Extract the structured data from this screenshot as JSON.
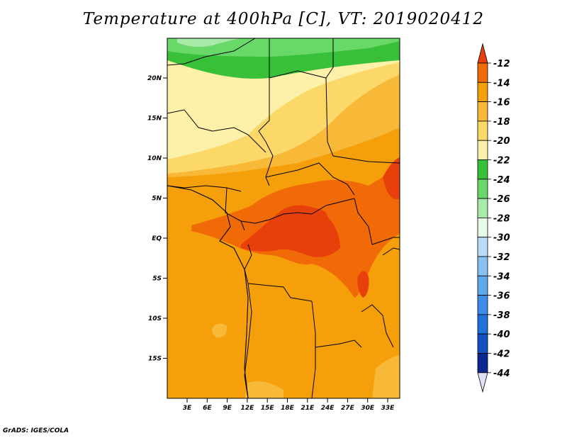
{
  "title": "Temperature at 400hPa [C], VT: 2019020412",
  "footer": "GrADS: IGES/COLA",
  "map": {
    "lat_ticks": [
      "20N",
      "15N",
      "10N",
      "5N",
      "EQ",
      "5S",
      "10S",
      "15S"
    ],
    "lon_ticks": [
      "3E",
      "6E",
      "9E",
      "12E",
      "15E",
      "18E",
      "21E",
      "24E",
      "27E",
      "30E",
      "33E"
    ]
  },
  "colorbar": {
    "labels": [
      "-12",
      "-14",
      "-16",
      "-18",
      "-20",
      "-22",
      "-24",
      "-26",
      "-28",
      "-30",
      "-32",
      "-34",
      "-36",
      "-38",
      "-40",
      "-42",
      "-44"
    ],
    "colors": [
      "#e8400a",
      "#f06a08",
      "#f5a00a",
      "#f8b838",
      "#fbd868",
      "#fdf0a8",
      "#38c038",
      "#68d868",
      "#a8eaa8",
      "#e8fae8",
      "#b8dcf8",
      "#88c0f0",
      "#60a8ee",
      "#3c8ce8",
      "#2270da",
      "#1450c0",
      "#0a2890",
      "#0a1060",
      "#e0e0f4"
    ]
  },
  "chart_data": {
    "type": "heatmap",
    "title": "Temperature at 400hPa [C], VT: 2019020412",
    "x_range_deg": [
      0,
      35
    ],
    "y_range_deg": [
      -20,
      24
    ],
    "contour_levels": [
      -44,
      -42,
      -40,
      -38,
      -36,
      -34,
      -32,
      -30,
      -28,
      -26,
      -24,
      -22,
      -20,
      -18,
      -16,
      -14,
      -12
    ]
  }
}
